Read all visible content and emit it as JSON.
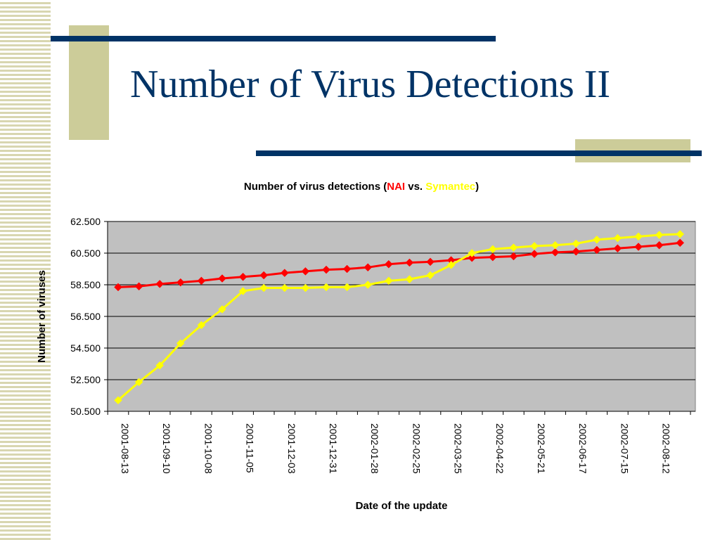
{
  "slide": {
    "title": "Number of Virus Detections II"
  },
  "chart_data": {
    "type": "line",
    "title_parts": [
      {
        "text": "Number of virus detections (",
        "color": "#000000"
      },
      {
        "text": "NAI",
        "color": "#ff0000"
      },
      {
        "text": " vs. ",
        "color": "#000000"
      },
      {
        "text": "Symantec",
        "color": "#ffff00"
      },
      {
        "text": ")",
        "color": "#000000"
      }
    ],
    "xlabel": "Date of the update",
    "ylabel": "Number of viruses",
    "ylim": [
      50500,
      62500
    ],
    "yticks": [
      50500,
      52500,
      54500,
      56500,
      58500,
      60500,
      62500
    ],
    "ytick_labels": [
      "50.500",
      "52.500",
      "54.500",
      "56.500",
      "58.500",
      "60.500",
      "62.500"
    ],
    "xtick_labels": [
      "2001-08-13",
      "2001-09-10",
      "2001-10-08",
      "2001-11-05",
      "2001-12-03",
      "2001-12-31",
      "2002-01-28",
      "2002-02-25",
      "2002-03-25",
      "2002-04-22",
      "2002-05-21",
      "2002-06-17",
      "2002-07-15",
      "2002-08-12"
    ],
    "grid": true,
    "legend": "none",
    "plot_background": "#c0c0c0",
    "series": [
      {
        "color": "#ff0000",
        "values": [
          58350,
          58400,
          58550,
          58650,
          58750,
          58900,
          59000,
          59100,
          59250,
          59350,
          59450,
          59500,
          59600,
          59800,
          59900,
          59950,
          60050,
          60200,
          60250,
          60300,
          60450,
          60550,
          60600,
          60700,
          60800,
          60900,
          61000,
          61150
        ]
      },
      {
        "color": "#ffff00",
        "values": [
          51200,
          52350,
          53400,
          54800,
          55950,
          56950,
          58100,
          58300,
          58300,
          58300,
          58350,
          58350,
          58500,
          58750,
          58850,
          59100,
          59750,
          60500,
          60750,
          60850,
          60950,
          61000,
          61100,
          61350,
          61450,
          61550,
          61650,
          61700
        ]
      }
    ]
  }
}
